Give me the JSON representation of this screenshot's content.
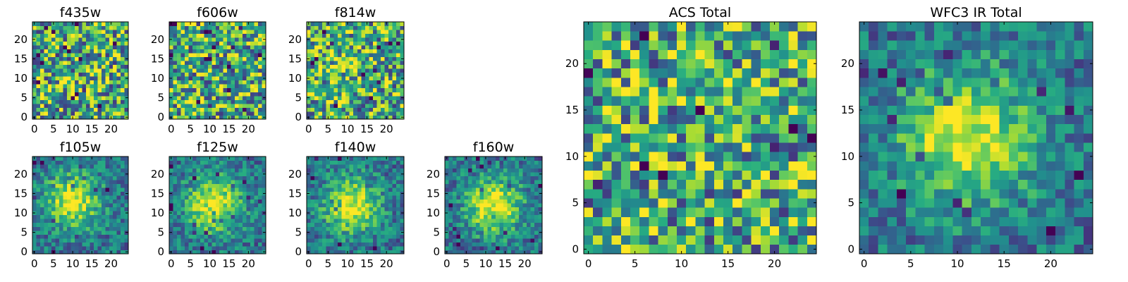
{
  "figure": {
    "colormap": "viridis",
    "background": "#ffffff"
  },
  "chart_data": [
    {
      "id": "f435w",
      "type": "heatmap",
      "title": "f435w",
      "xlim": [
        0,
        25
      ],
      "ylim": [
        0,
        25
      ],
      "xticks": [
        0,
        5,
        10,
        15,
        20
      ],
      "yticks": [
        0,
        5,
        10,
        15,
        20
      ],
      "grid_size": [
        25,
        25
      ],
      "pattern": "noise"
    },
    {
      "id": "f606w",
      "type": "heatmap",
      "title": "f606w",
      "xlim": [
        0,
        25
      ],
      "ylim": [
        0,
        25
      ],
      "xticks": [
        0,
        5,
        10,
        15,
        20
      ],
      "yticks": [
        0,
        5,
        10,
        15,
        20
      ],
      "grid_size": [
        25,
        25
      ],
      "pattern": "noise"
    },
    {
      "id": "f814w",
      "type": "heatmap",
      "title": "f814w",
      "xlim": [
        0,
        25
      ],
      "ylim": [
        0,
        25
      ],
      "xticks": [
        0,
        5,
        10,
        15,
        20
      ],
      "yticks": [
        0,
        5,
        10,
        15,
        20
      ],
      "grid_size": [
        25,
        25
      ],
      "pattern": "weak-central-source",
      "peak": [
        10,
        13
      ]
    },
    {
      "id": "f105w",
      "type": "heatmap",
      "title": "f105w",
      "xlim": [
        0,
        25
      ],
      "ylim": [
        0,
        25
      ],
      "xticks": [
        0,
        5,
        10,
        15,
        20
      ],
      "yticks": [
        0,
        5,
        10,
        15,
        20
      ],
      "grid_size": [
        25,
        25
      ],
      "pattern": "central-source",
      "peak": [
        10,
        13
      ]
    },
    {
      "id": "f125w",
      "type": "heatmap",
      "title": "f125w",
      "xlim": [
        0,
        25
      ],
      "ylim": [
        0,
        25
      ],
      "xticks": [
        0,
        5,
        10,
        15,
        20
      ],
      "yticks": [
        0,
        5,
        10,
        15,
        20
      ],
      "grid_size": [
        25,
        25
      ],
      "pattern": "central-source",
      "peak": [
        11,
        12
      ]
    },
    {
      "id": "f140w",
      "type": "heatmap",
      "title": "f140w",
      "xlim": [
        0,
        25
      ],
      "ylim": [
        0,
        25
      ],
      "xticks": [
        0,
        5,
        10,
        15,
        20
      ],
      "yticks": [
        0,
        5,
        10,
        15,
        20
      ],
      "grid_size": [
        25,
        25
      ],
      "pattern": "central-source",
      "peak": [
        11,
        12
      ]
    },
    {
      "id": "f160w",
      "type": "heatmap",
      "title": "f160w",
      "xlim": [
        0,
        25
      ],
      "ylim": [
        0,
        25
      ],
      "xticks": [
        0,
        5,
        10,
        15,
        20
      ],
      "yticks": [
        0,
        5,
        10,
        15,
        20
      ],
      "grid_size": [
        25,
        25
      ],
      "pattern": "central-source",
      "peak": [
        12,
        12
      ]
    },
    {
      "id": "acs-total",
      "type": "heatmap",
      "title": "ACS Total",
      "xlim": [
        0,
        25
      ],
      "ylim": [
        0,
        25
      ],
      "xticks": [
        0,
        5,
        10,
        15,
        20
      ],
      "yticks": [
        0,
        5,
        10,
        15,
        20
      ],
      "grid_size": [
        25,
        25
      ],
      "pattern": "noise"
    },
    {
      "id": "wfc3-total",
      "type": "heatmap",
      "title": "WFC3 IR Total",
      "xlim": [
        0,
        25
      ],
      "ylim": [
        0,
        25
      ],
      "xticks": [
        0,
        5,
        10,
        15,
        20
      ],
      "yticks": [
        0,
        5,
        10,
        15,
        20
      ],
      "grid_size": [
        25,
        25
      ],
      "pattern": "central-source",
      "peak": [
        11,
        12
      ]
    }
  ]
}
